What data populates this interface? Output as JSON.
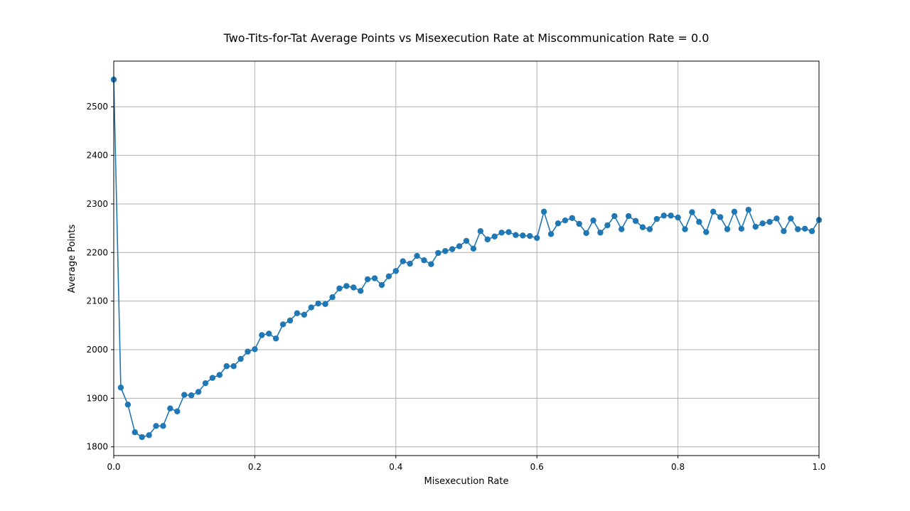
{
  "chart_data": {
    "type": "line",
    "title": "Two-Tits-for-Tat Average Points vs Misexecution Rate at Miscommunication Rate = 0.0",
    "xlabel": "Misexecution Rate",
    "ylabel": "Average Points",
    "xlim": [
      0.0,
      1.0
    ],
    "ylim": [
      1782,
      2594
    ],
    "grid": true,
    "marker": "circle",
    "color": "#1f77b4",
    "x_ticks": [
      0.0,
      0.2,
      0.4,
      0.6,
      0.8,
      1.0
    ],
    "x_tick_labels": [
      "0.0",
      "0.2",
      "0.4",
      "0.6",
      "0.8",
      "1.0"
    ],
    "y_ticks": [
      1800,
      1900,
      2000,
      2100,
      2200,
      2300,
      2400,
      2500
    ],
    "y_tick_labels": [
      "1800",
      "1900",
      "2000",
      "2100",
      "2200",
      "2300",
      "2400",
      "2500"
    ],
    "series": [
      {
        "x": [
          0.0,
          0.01,
          0.02,
          0.03,
          0.04,
          0.05,
          0.06,
          0.07,
          0.08,
          0.09,
          0.1,
          0.11,
          0.12,
          0.13,
          0.14,
          0.15,
          0.16,
          0.17,
          0.18,
          0.19,
          0.2,
          0.21,
          0.22,
          0.23,
          0.24,
          0.25,
          0.26,
          0.27,
          0.28,
          0.29,
          0.3,
          0.31,
          0.32,
          0.33,
          0.34,
          0.35,
          0.36,
          0.37,
          0.38,
          0.39,
          0.4,
          0.41,
          0.42,
          0.43,
          0.44,
          0.45,
          0.46,
          0.47,
          0.48,
          0.49,
          0.5,
          0.51,
          0.52,
          0.53,
          0.54,
          0.55,
          0.56,
          0.57,
          0.58,
          0.59,
          0.6,
          0.61,
          0.62,
          0.63,
          0.64,
          0.65,
          0.66,
          0.67,
          0.68,
          0.69,
          0.7,
          0.71,
          0.72,
          0.73,
          0.74,
          0.75,
          0.76,
          0.77,
          0.78,
          0.79,
          0.8,
          0.81,
          0.82,
          0.83,
          0.84,
          0.85,
          0.86,
          0.87,
          0.88,
          0.89,
          0.9,
          0.91,
          0.92,
          0.93,
          0.94,
          0.95,
          0.96,
          0.97,
          0.98,
          0.99,
          1.0
        ],
        "values": [
          2556,
          1922,
          1887,
          1830,
          1820,
          1824,
          1843,
          1843,
          1879,
          1873,
          1907,
          1906,
          1913,
          1931,
          1942,
          1948,
          1966,
          1966,
          1981,
          1996,
          2001,
          2030,
          2033,
          2023,
          2052,
          2060,
          2075,
          2072,
          2087,
          2095,
          2094,
          2108,
          2126,
          2131,
          2128,
          2121,
          2145,
          2147,
          2133,
          2151,
          2162,
          2182,
          2177,
          2193,
          2184,
          2176,
          2199,
          2203,
          2207,
          2213,
          2224,
          2208,
          2244,
          2227,
          2233,
          2241,
          2242,
          2236,
          2235,
          2234,
          2230,
          2284,
          2238,
          2260,
          2266,
          2271,
          2259,
          2240,
          2266,
          2241,
          2256,
          2275,
          2248,
          2275,
          2265,
          2252,
          2248,
          2269,
          2276,
          2276,
          2272,
          2248,
          2283,
          2263,
          2242,
          2284,
          2273,
          2248,
          2284,
          2249,
          2288,
          2253,
          2260,
          2263,
          2270,
          2244,
          2270,
          2248,
          2249,
          2244,
          2267
        ]
      }
    ]
  }
}
